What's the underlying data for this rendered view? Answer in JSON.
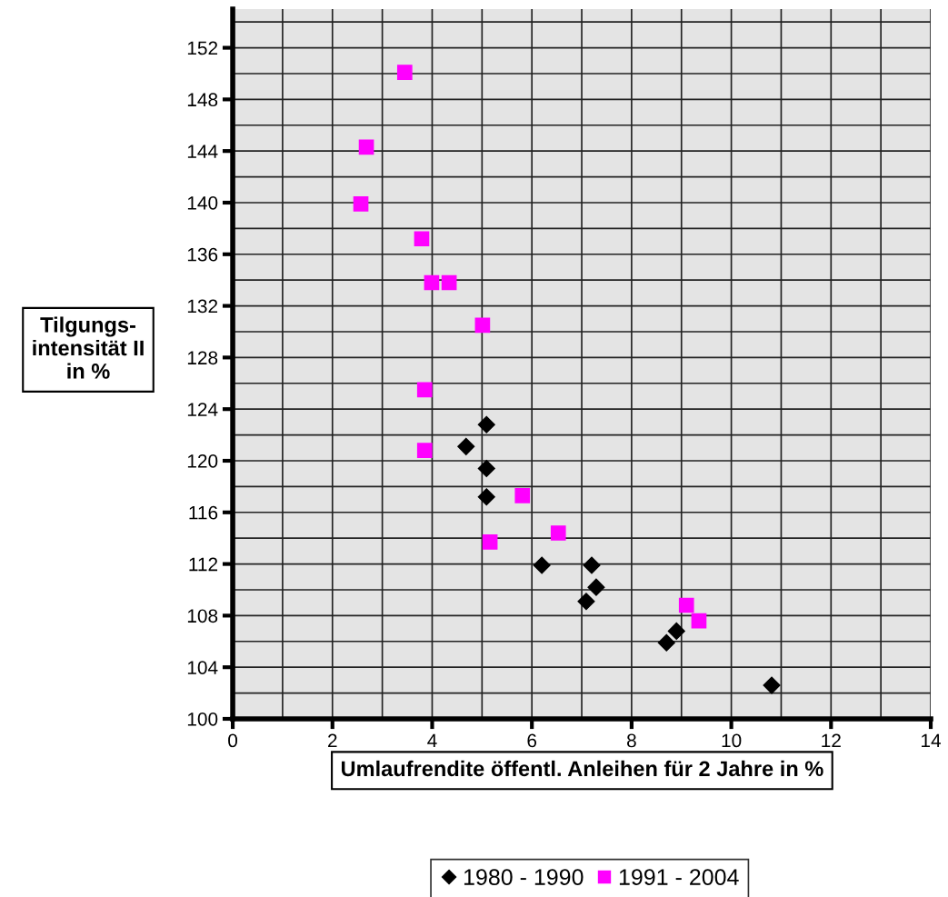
{
  "chart_data": {
    "type": "scatter",
    "xlabel": "Umlaufrendite öffentl. Anleihen für 2 Jahre in %",
    "ylabel": "Tilgungs-\nintensität II\nin %",
    "xlim": [
      0,
      14
    ],
    "xticks": [
      0,
      2,
      4,
      6,
      8,
      10,
      12,
      14
    ],
    "ylim": [
      100,
      155
    ],
    "yticks": [
      100,
      104,
      108,
      112,
      116,
      120,
      124,
      128,
      132,
      136,
      140,
      144,
      148,
      152
    ],
    "grid": true,
    "legend": "bottom",
    "series": [
      {
        "name": "1980 - 1990",
        "color": "#000000",
        "marker": "diamond",
        "x": [
          5.09,
          4.68,
          5.09,
          5.09,
          6.2,
          7.2,
          7.29,
          7.09,
          8.9,
          8.7,
          10.81
        ],
        "values": [
          122.8,
          121.1,
          119.4,
          117.2,
          111.9,
          111.9,
          110.2,
          109.1,
          106.8,
          105.9,
          102.6
        ]
      },
      {
        "name": "1991 - 2004",
        "color": "#ff00ff",
        "marker": "square",
        "x": [
          3.45,
          2.68,
          2.57,
          3.79,
          3.99,
          4.34,
          5.01,
          3.85,
          3.85,
          5.81,
          6.53,
          5.16,
          9.1,
          9.35
        ],
        "values": [
          150.1,
          144.3,
          139.9,
          137.2,
          133.8,
          133.8,
          130.5,
          125.5,
          120.8,
          117.3,
          114.4,
          113.7,
          108.8,
          107.6
        ]
      }
    ]
  }
}
